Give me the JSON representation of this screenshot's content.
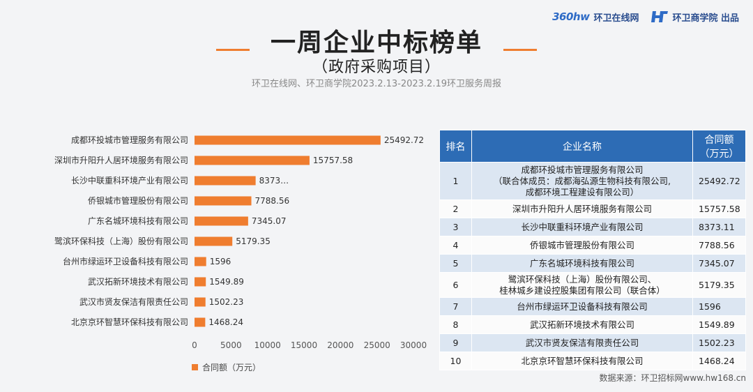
{
  "brand": {
    "logo_text": "360hw",
    "logo_sub": "环卫在线网",
    "site_label": "环卫在线网",
    "org_label": "环卫商学院 出品"
  },
  "header": {
    "title": "一周企业中标榜单",
    "subtitle": "（政府采购项目）",
    "source_line": "环卫在线网、环卫商学院2023.2.13-2023.2.19环卫服务周报"
  },
  "colors": {
    "bar": "#ef7d2f",
    "header_bg": "#2d6cb5",
    "row_alt": "#dce6f2"
  },
  "chart_data": {
    "type": "bar",
    "orientation": "horizontal",
    "categories": [
      "成都环投城市管理服务有限公司",
      "深圳市升阳升人居环境服务有限公司",
      "长沙中联重科环境产业有限公司",
      "侨银城市管理股份有限公司",
      "广东名城环境科技有限公司",
      "鹭滨环保科技（上海）股份有限公司",
      "台州市绿运环卫设备科技有限公司",
      "武汉拓新环境技术有限公司",
      "武汉市贤友保洁有限责任公司",
      "北京京环智慧环保科技有限公司"
    ],
    "values": [
      25492.72,
      15757.58,
      8373.11,
      7788.56,
      7345.07,
      5179.35,
      1596,
      1549.89,
      1502.23,
      1468.24
    ],
    "value_labels": [
      "25492.72",
      "15757.58",
      "8373…",
      "7788.56",
      "7345.07",
      "5179.35",
      "1596",
      "1549.89",
      "1502.23",
      "1468.24"
    ],
    "xlim": [
      0,
      30000
    ],
    "xticks": [
      0,
      5000,
      10000,
      15000,
      20000,
      25000,
      30000
    ],
    "legend": "合同额（万元）",
    "legend_position": "bottom-left"
  },
  "table": {
    "headers": {
      "rank": "排名",
      "name": "企业名称",
      "amount_l1": "合同额",
      "amount_l2": "（万元）"
    },
    "rows": [
      {
        "rank": "1",
        "name_lines": [
          "成都环投城市管理服务有限公司",
          "（联合体成员：成都海弘源生物科技有限公司,",
          "成都环境工程建设有限公司）"
        ],
        "amount": "25492.72"
      },
      {
        "rank": "2",
        "name_lines": [
          "深圳市升阳升人居环境服务有限公司"
        ],
        "amount": "15757.58"
      },
      {
        "rank": "3",
        "name_lines": [
          "长沙中联重科环境产业有限公司"
        ],
        "amount": "8373.11"
      },
      {
        "rank": "4",
        "name_lines": [
          "侨银城市管理股份有限公司"
        ],
        "amount": "7788.56"
      },
      {
        "rank": "5",
        "name_lines": [
          "广东名城环境科技有限公司"
        ],
        "amount": "7345.07"
      },
      {
        "rank": "6",
        "name_lines": [
          "鹭滨环保科技（上海）股份有限公司、",
          "桂林城乡建设控股集团有限公司（联合体）"
        ],
        "amount": "5179.35"
      },
      {
        "rank": "7",
        "name_lines": [
          "台州市绿运环卫设备科技有限公司"
        ],
        "amount": "1596"
      },
      {
        "rank": "8",
        "name_lines": [
          "武汉拓新环境技术有限公司"
        ],
        "amount": "1549.89"
      },
      {
        "rank": "9",
        "name_lines": [
          "武汉市贤友保洁有限责任公司"
        ],
        "amount": "1502.23"
      },
      {
        "rank": "10",
        "name_lines": [
          "北京京环智慧环保科技有限公司"
        ],
        "amount": "1468.24"
      }
    ]
  },
  "footer": {
    "data_source": "数据来源：环卫招标网www.hw168.cn"
  }
}
